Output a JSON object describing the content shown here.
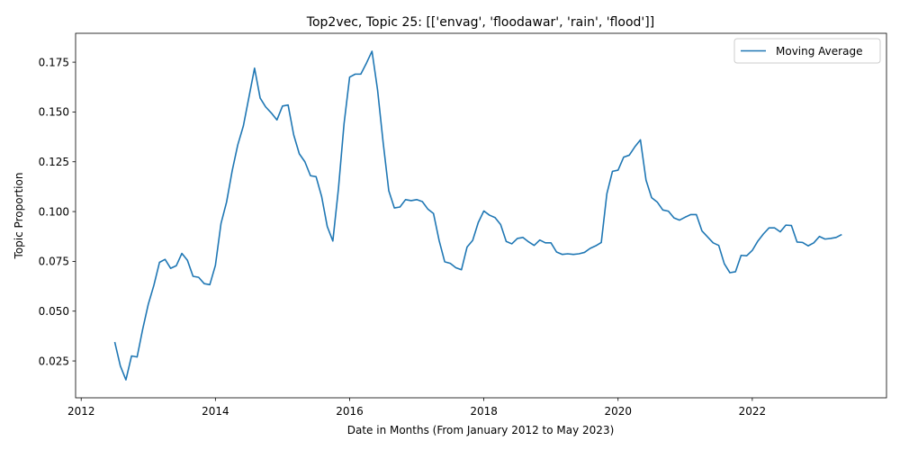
{
  "chart_data": {
    "type": "line",
    "title": "Top2vec, Topic 25: [['envag', 'floodawar', 'rain', 'flood']]",
    "xlabel": "Date in Months (From January 2012 to May 2023)",
    "ylabel": "Topic Proportion",
    "x_ticks": [
      "2012",
      "2014",
      "2016",
      "2018",
      "2020",
      "2022"
    ],
    "y_ticks": [
      "0.025",
      "0.050",
      "0.075",
      "0.100",
      "0.125",
      "0.150",
      "0.175"
    ],
    "xlim": [
      "2011-12",
      "2024-01"
    ],
    "ylim": [
      0.0065,
      0.1895
    ],
    "grid": false,
    "legend": {
      "position": "top-right",
      "entries": [
        "Moving Average"
      ]
    },
    "series": [
      {
        "name": "Moving Average",
        "color": "#1f77b4",
        "x": [
          "2012-07",
          "2012-08",
          "2012-09",
          "2012-10",
          "2012-11",
          "2012-12",
          "2013-01",
          "2013-02",
          "2013-03",
          "2013-04",
          "2013-05",
          "2013-06",
          "2013-07",
          "2013-08",
          "2013-09",
          "2013-10",
          "2013-11",
          "2013-12",
          "2014-01",
          "2014-02",
          "2014-03",
          "2014-04",
          "2014-05",
          "2014-06",
          "2014-07",
          "2014-08",
          "2014-09",
          "2014-10",
          "2014-11",
          "2014-12",
          "2015-01",
          "2015-02",
          "2015-03",
          "2015-04",
          "2015-05",
          "2015-06",
          "2015-07",
          "2015-08",
          "2015-09",
          "2015-10",
          "2015-11",
          "2015-12",
          "2016-01",
          "2016-02",
          "2016-03",
          "2016-04",
          "2016-05",
          "2016-06",
          "2016-07",
          "2016-08",
          "2016-09",
          "2016-10",
          "2016-11",
          "2016-12",
          "2017-01",
          "2017-02",
          "2017-03",
          "2017-04",
          "2017-05",
          "2017-06",
          "2017-07",
          "2017-08",
          "2017-09",
          "2017-10",
          "2017-11",
          "2017-12",
          "2018-01",
          "2018-02",
          "2018-03",
          "2018-04",
          "2018-05",
          "2018-06",
          "2018-07",
          "2018-08",
          "2018-09",
          "2018-10",
          "2018-11",
          "2018-12",
          "2019-01",
          "2019-02",
          "2019-03",
          "2019-04",
          "2019-05",
          "2019-06",
          "2019-07",
          "2019-08",
          "2019-09",
          "2019-10",
          "2019-11",
          "2019-12",
          "2020-01",
          "2020-02",
          "2020-03",
          "2020-04",
          "2020-05",
          "2020-06",
          "2020-07",
          "2020-08",
          "2020-09",
          "2020-10",
          "2020-11",
          "2020-12",
          "2021-01",
          "2021-02",
          "2021-03",
          "2021-04",
          "2021-05",
          "2021-06",
          "2021-07",
          "2021-08",
          "2021-09",
          "2021-10",
          "2021-11",
          "2021-12",
          "2022-01",
          "2022-02",
          "2022-03",
          "2022-04",
          "2022-05",
          "2022-06",
          "2022-07",
          "2022-08",
          "2022-09",
          "2022-10",
          "2022-11",
          "2022-12",
          "2023-01",
          "2023-02",
          "2023-03",
          "2023-04",
          "2023-05"
        ],
        "values": [
          0.0345,
          0.0225,
          0.0155,
          0.0275,
          0.027,
          0.041,
          0.0535,
          0.063,
          0.0745,
          0.076,
          0.0715,
          0.0728,
          0.079,
          0.0755,
          0.0675,
          0.067,
          0.0638,
          0.0633,
          0.073,
          0.094,
          0.1048,
          0.1205,
          0.1335,
          0.143,
          0.1575,
          0.172,
          0.157,
          0.1525,
          0.1495,
          0.146,
          0.153,
          0.1535,
          0.1385,
          0.129,
          0.125,
          0.118,
          0.1175,
          0.1075,
          0.0925,
          0.0852,
          0.1115,
          0.144,
          0.1675,
          0.169,
          0.169,
          0.1745,
          0.1805,
          0.161,
          0.1345,
          0.1105,
          0.1018,
          0.1023,
          0.106,
          0.1055,
          0.106,
          0.105,
          0.1012,
          0.099,
          0.0855,
          0.0748,
          0.074,
          0.0718,
          0.0708,
          0.0822,
          0.0855,
          0.0945,
          0.1003,
          0.0982,
          0.097,
          0.0935,
          0.085,
          0.0838,
          0.0865,
          0.087,
          0.0848,
          0.083,
          0.0857,
          0.0843,
          0.0843,
          0.0797,
          0.0785,
          0.0788,
          0.0785,
          0.0788,
          0.0795,
          0.0815,
          0.0828,
          0.0845,
          0.109,
          0.1202,
          0.1208,
          0.1273,
          0.1283,
          0.1325,
          0.136,
          0.1158,
          0.107,
          0.1048,
          0.1008,
          0.1002,
          0.0968,
          0.0957,
          0.0972,
          0.0985,
          0.0985,
          0.0903,
          0.0873,
          0.0843,
          0.083,
          0.0738,
          0.0693,
          0.0698,
          0.078,
          0.0778,
          0.0805,
          0.0852,
          0.0888,
          0.0918,
          0.0918,
          0.0898,
          0.0932,
          0.093,
          0.0847,
          0.0845,
          0.0828,
          0.0843,
          0.0875,
          0.0862,
          0.0865,
          0.087,
          0.0885
        ]
      }
    ]
  }
}
